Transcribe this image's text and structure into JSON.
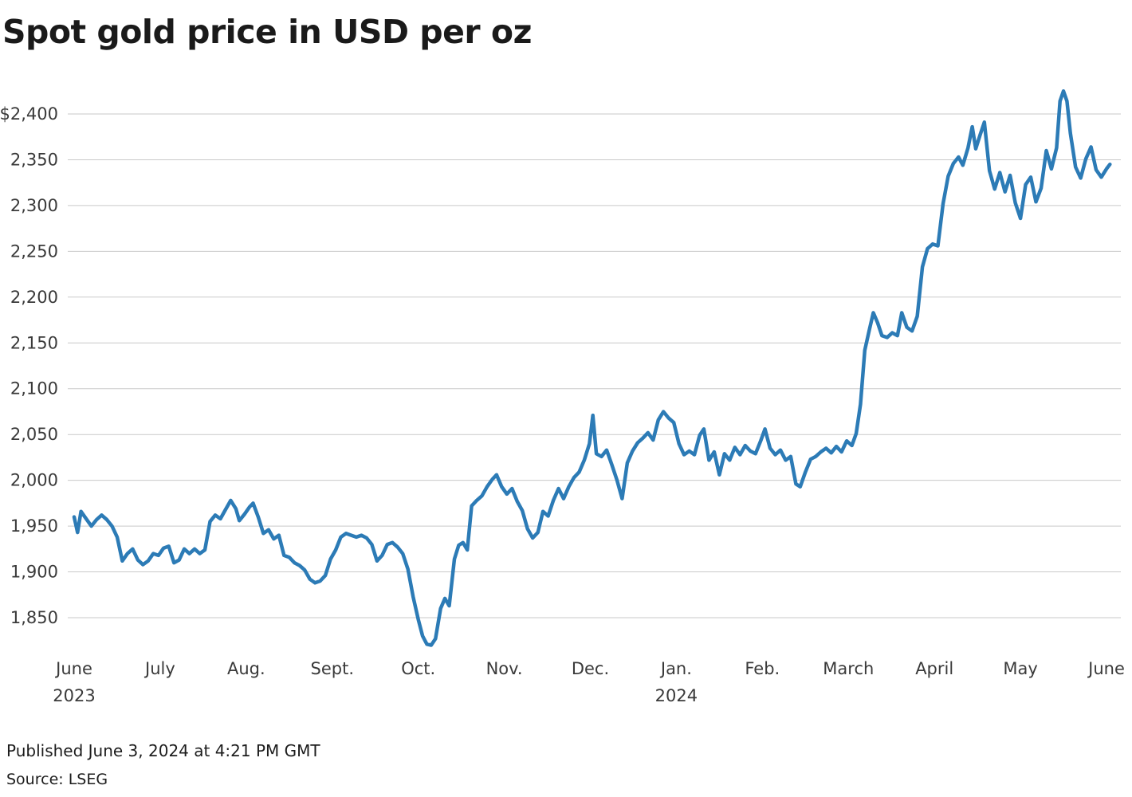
{
  "title": "Spot gold price in USD per oz",
  "footer": {
    "published": "Published June 3, 2024 at 4:21 PM GMT",
    "source": "Source: LSEG"
  },
  "chart_data": {
    "type": "line",
    "title": "Spot gold price in USD per oz",
    "ylabel": "USD per oz",
    "xlabel": "",
    "grid": "horizontal",
    "legend": "none",
    "x_unit": "months since June 2023",
    "xlim": [
      0,
      12.05
    ],
    "ylim": [
      1818,
      2427
    ],
    "y_ticks": [
      {
        "value": 2400,
        "label": "$2,400"
      },
      {
        "value": 2350,
        "label": "2,350"
      },
      {
        "value": 2300,
        "label": "2,300"
      },
      {
        "value": 2250,
        "label": "2,250"
      },
      {
        "value": 2200,
        "label": "2,200"
      },
      {
        "value": 2150,
        "label": "2,150"
      },
      {
        "value": 2100,
        "label": "2,100"
      },
      {
        "value": 2050,
        "label": "2,050"
      },
      {
        "value": 2000,
        "label": "2,000"
      },
      {
        "value": 1950,
        "label": "1,950"
      },
      {
        "value": 1900,
        "label": "1,900"
      },
      {
        "value": 1850,
        "label": "1,850"
      }
    ],
    "x_ticks": [
      {
        "pos": 0,
        "label": "June",
        "sub": "2023"
      },
      {
        "pos": 1,
        "label": "July"
      },
      {
        "pos": 2,
        "label": "Aug."
      },
      {
        "pos": 3,
        "label": "Sept."
      },
      {
        "pos": 4,
        "label": "Oct."
      },
      {
        "pos": 5,
        "label": "Nov."
      },
      {
        "pos": 6,
        "label": "Dec."
      },
      {
        "pos": 7,
        "label": "Jan.",
        "sub": "2024"
      },
      {
        "pos": 8,
        "label": "Feb."
      },
      {
        "pos": 9,
        "label": "March"
      },
      {
        "pos": 10,
        "label": "April"
      },
      {
        "pos": 11,
        "label": "May"
      },
      {
        "pos": 12,
        "label": "June"
      }
    ],
    "series": [
      {
        "name": "Spot gold price (USD/oz)",
        "color": "#2c7bb6",
        "points": [
          [
            0.0,
            1960
          ],
          [
            0.04,
            1943
          ],
          [
            0.08,
            1966
          ],
          [
            0.14,
            1958
          ],
          [
            0.2,
            1950
          ],
          [
            0.26,
            1957
          ],
          [
            0.32,
            1962
          ],
          [
            0.38,
            1957
          ],
          [
            0.44,
            1950
          ],
          [
            0.5,
            1938
          ],
          [
            0.56,
            1912
          ],
          [
            0.62,
            1920
          ],
          [
            0.68,
            1925
          ],
          [
            0.74,
            1913
          ],
          [
            0.8,
            1908
          ],
          [
            0.86,
            1912
          ],
          [
            0.92,
            1920
          ],
          [
            0.98,
            1918
          ],
          [
            1.04,
            1926
          ],
          [
            1.1,
            1928
          ],
          [
            1.16,
            1910
          ],
          [
            1.22,
            1913
          ],
          [
            1.28,
            1925
          ],
          [
            1.34,
            1920
          ],
          [
            1.4,
            1925
          ],
          [
            1.46,
            1920
          ],
          [
            1.52,
            1924
          ],
          [
            1.58,
            1955
          ],
          [
            1.64,
            1962
          ],
          [
            1.7,
            1958
          ],
          [
            1.76,
            1968
          ],
          [
            1.82,
            1978
          ],
          [
            1.88,
            1969
          ],
          [
            1.92,
            1956
          ],
          [
            1.98,
            1963
          ],
          [
            2.04,
            1971
          ],
          [
            2.08,
            1975
          ],
          [
            2.14,
            1960
          ],
          [
            2.2,
            1942
          ],
          [
            2.26,
            1946
          ],
          [
            2.32,
            1936
          ],
          [
            2.38,
            1940
          ],
          [
            2.44,
            1918
          ],
          [
            2.5,
            1916
          ],
          [
            2.56,
            1910
          ],
          [
            2.62,
            1907
          ],
          [
            2.68,
            1902
          ],
          [
            2.74,
            1892
          ],
          [
            2.8,
            1888
          ],
          [
            2.86,
            1890
          ],
          [
            2.92,
            1896
          ],
          [
            2.98,
            1914
          ],
          [
            3.04,
            1924
          ],
          [
            3.1,
            1938
          ],
          [
            3.16,
            1942
          ],
          [
            3.22,
            1940
          ],
          [
            3.28,
            1938
          ],
          [
            3.34,
            1940
          ],
          [
            3.4,
            1937
          ],
          [
            3.46,
            1930
          ],
          [
            3.52,
            1912
          ],
          [
            3.58,
            1918
          ],
          [
            3.64,
            1930
          ],
          [
            3.7,
            1932
          ],
          [
            3.76,
            1927
          ],
          [
            3.82,
            1920
          ],
          [
            3.88,
            1903
          ],
          [
            3.94,
            1873
          ],
          [
            4.0,
            1848
          ],
          [
            4.05,
            1830
          ],
          [
            4.1,
            1821
          ],
          [
            4.15,
            1820
          ],
          [
            4.2,
            1827
          ],
          [
            4.26,
            1860
          ],
          [
            4.31,
            1871
          ],
          [
            4.36,
            1863
          ],
          [
            4.42,
            1914
          ],
          [
            4.47,
            1929
          ],
          [
            4.52,
            1932
          ],
          [
            4.57,
            1924
          ],
          [
            4.62,
            1972
          ],
          [
            4.68,
            1978
          ],
          [
            4.74,
            1983
          ],
          [
            4.8,
            1993
          ],
          [
            4.86,
            2001
          ],
          [
            4.91,
            2006
          ],
          [
            4.97,
            1993
          ],
          [
            5.03,
            1985
          ],
          [
            5.09,
            1991
          ],
          [
            5.15,
            1977
          ],
          [
            5.21,
            1967
          ],
          [
            5.27,
            1947
          ],
          [
            5.33,
            1937
          ],
          [
            5.39,
            1943
          ],
          [
            5.45,
            1966
          ],
          [
            5.51,
            1961
          ],
          [
            5.57,
            1978
          ],
          [
            5.63,
            1991
          ],
          [
            5.69,
            1980
          ],
          [
            5.75,
            1993
          ],
          [
            5.81,
            2003
          ],
          [
            5.87,
            2009
          ],
          [
            5.93,
            2022
          ],
          [
            5.99,
            2040
          ],
          [
            6.03,
            2071
          ],
          [
            6.07,
            2029
          ],
          [
            6.13,
            2026
          ],
          [
            6.19,
            2033
          ],
          [
            6.25,
            2017
          ],
          [
            6.31,
            2000
          ],
          [
            6.37,
            1980
          ],
          [
            6.43,
            2019
          ],
          [
            6.49,
            2032
          ],
          [
            6.55,
            2041
          ],
          [
            6.61,
            2046
          ],
          [
            6.67,
            2052
          ],
          [
            6.73,
            2044
          ],
          [
            6.79,
            2066
          ],
          [
            6.85,
            2075
          ],
          [
            6.91,
            2068
          ],
          [
            6.97,
            2063
          ],
          [
            7.03,
            2040
          ],
          [
            7.09,
            2028
          ],
          [
            7.15,
            2032
          ],
          [
            7.21,
            2028
          ],
          [
            7.27,
            2049
          ],
          [
            7.32,
            2056
          ],
          [
            7.38,
            2022
          ],
          [
            7.44,
            2031
          ],
          [
            7.5,
            2006
          ],
          [
            7.56,
            2029
          ],
          [
            7.62,
            2022
          ],
          [
            7.68,
            2036
          ],
          [
            7.74,
            2028
          ],
          [
            7.8,
            2038
          ],
          [
            7.86,
            2032
          ],
          [
            7.92,
            2029
          ],
          [
            7.98,
            2043
          ],
          [
            8.03,
            2056
          ],
          [
            8.09,
            2035
          ],
          [
            8.15,
            2028
          ],
          [
            8.21,
            2033
          ],
          [
            8.27,
            2022
          ],
          [
            8.33,
            2026
          ],
          [
            8.39,
            1996
          ],
          [
            8.44,
            1993
          ],
          [
            8.5,
            2009
          ],
          [
            8.56,
            2023
          ],
          [
            8.62,
            2026
          ],
          [
            8.68,
            2031
          ],
          [
            8.74,
            2035
          ],
          [
            8.8,
            2030
          ],
          [
            8.86,
            2037
          ],
          [
            8.92,
            2031
          ],
          [
            8.98,
            2043
          ],
          [
            9.04,
            2038
          ],
          [
            9.09,
            2051
          ],
          [
            9.14,
            2083
          ],
          [
            9.19,
            2142
          ],
          [
            9.24,
            2163
          ],
          [
            9.29,
            2183
          ],
          [
            9.34,
            2172
          ],
          [
            9.39,
            2158
          ],
          [
            9.45,
            2156
          ],
          [
            9.51,
            2161
          ],
          [
            9.57,
            2158
          ],
          [
            9.62,
            2183
          ],
          [
            9.68,
            2167
          ],
          [
            9.74,
            2163
          ],
          [
            9.8,
            2179
          ],
          [
            9.86,
            2233
          ],
          [
            9.92,
            2253
          ],
          [
            9.98,
            2258
          ],
          [
            10.04,
            2256
          ],
          [
            10.1,
            2302
          ],
          [
            10.16,
            2332
          ],
          [
            10.22,
            2346
          ],
          [
            10.28,
            2353
          ],
          [
            10.33,
            2344
          ],
          [
            10.39,
            2363
          ],
          [
            10.44,
            2386
          ],
          [
            10.48,
            2362
          ],
          [
            10.53,
            2377
          ],
          [
            10.58,
            2391
          ],
          [
            10.64,
            2338
          ],
          [
            10.7,
            2318
          ],
          [
            10.76,
            2336
          ],
          [
            10.82,
            2315
          ],
          [
            10.88,
            2333
          ],
          [
            10.94,
            2303
          ],
          [
            11.0,
            2286
          ],
          [
            11.06,
            2323
          ],
          [
            11.12,
            2331
          ],
          [
            11.18,
            2304
          ],
          [
            11.24,
            2319
          ],
          [
            11.3,
            2360
          ],
          [
            11.36,
            2340
          ],
          [
            11.42,
            2363
          ],
          [
            11.46,
            2414
          ],
          [
            11.5,
            2425
          ],
          [
            11.54,
            2414
          ],
          [
            11.58,
            2379
          ],
          [
            11.64,
            2342
          ],
          [
            11.7,
            2330
          ],
          [
            11.76,
            2351
          ],
          [
            11.82,
            2364
          ],
          [
            11.88,
            2339
          ],
          [
            11.94,
            2331
          ],
          [
            12.0,
            2340
          ],
          [
            12.04,
            2345
          ]
        ]
      }
    ]
  }
}
